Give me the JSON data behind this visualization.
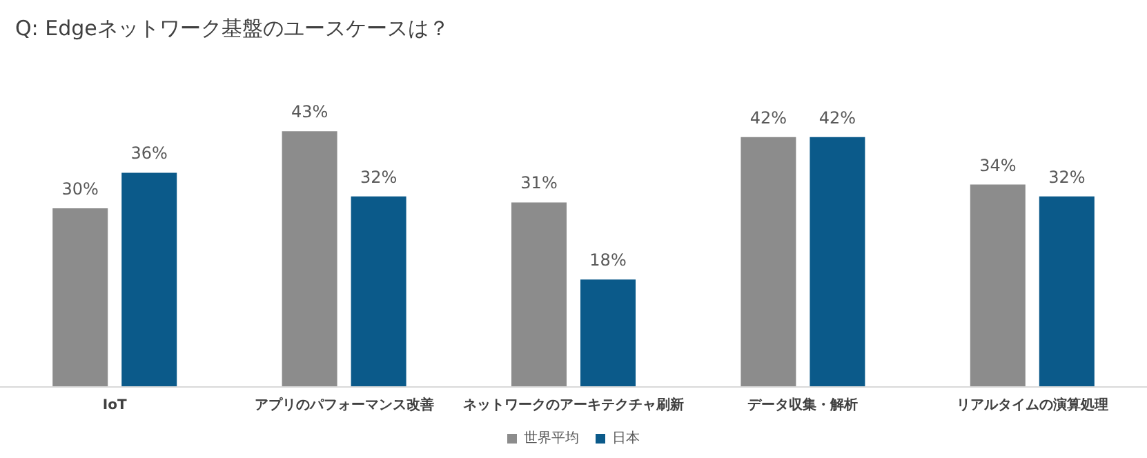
{
  "chart_data": {
    "type": "bar",
    "title": "Q: Edgeネットワーク基盤のユースケースは？",
    "categories": [
      "IoT",
      "アプリのパフォーマンス改善",
      "ネットワークのアーキテクチャ刷新",
      "データ収集・解析",
      "リアルタイムの演算処理"
    ],
    "series": [
      {
        "name": "世界平均",
        "color": "#8c8c8c",
        "values": [
          30,
          43,
          31,
          42,
          34
        ],
        "value_labels": [
          "30%",
          "43%",
          "31%",
          "42%",
          "34%"
        ]
      },
      {
        "name": "日本",
        "color": "#0b5a8a",
        "values": [
          36,
          32,
          18,
          42,
          32
        ],
        "value_labels": [
          "36%",
          "32%",
          "18%",
          "42%",
          "32%"
        ]
      }
    ],
    "legend": "bottom"
  }
}
